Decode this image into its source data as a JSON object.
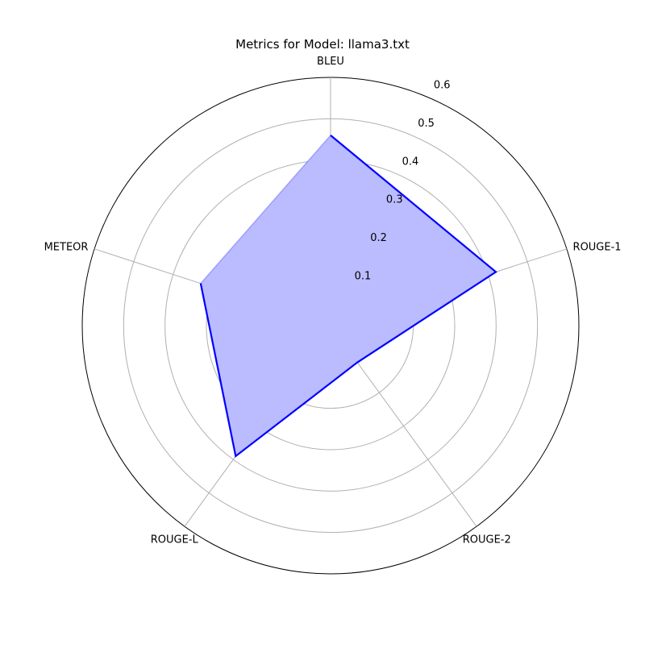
{
  "chart_data": {
    "type": "radar",
    "title": "Metrics for Model: llama3.txt",
    "axes": [
      "BLEU",
      "ROUGE-1",
      "ROUGE-2",
      "ROUGE-L",
      "METEOR"
    ],
    "series": [
      {
        "values": [
          0.46,
          0.42,
          0.11,
          0.39,
          0.33
        ]
      }
    ],
    "rlim": [
      0,
      0.6
    ],
    "rticks": [
      0.1,
      0.2,
      0.3,
      0.4,
      0.5,
      0.6
    ],
    "rtick_labels": [
      "0.1",
      "0.2",
      "0.3",
      "0.4",
      "0.5",
      "0.6"
    ],
    "grid": true,
    "colors": {
      "line": "#0000ff",
      "fill": "#bbbbff",
      "grid": "#b0b0b0",
      "frame": "#000000"
    }
  }
}
